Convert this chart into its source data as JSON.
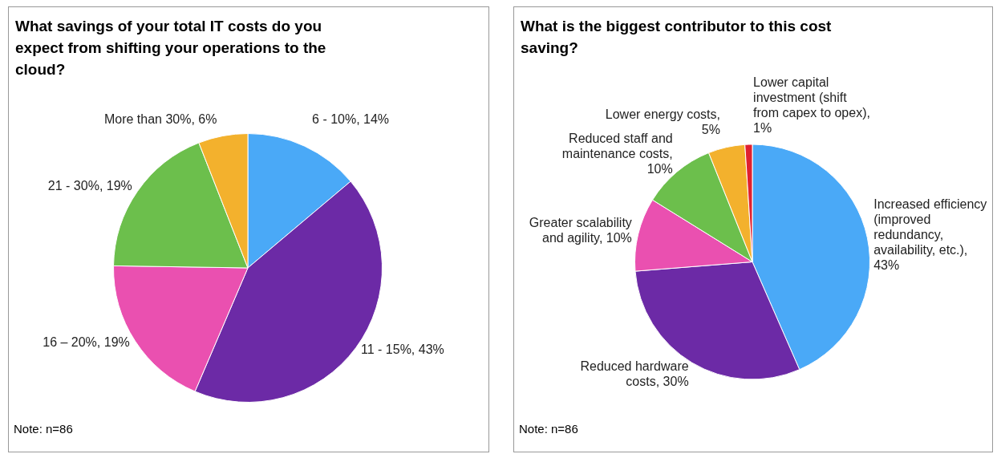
{
  "chart_data": [
    {
      "type": "pie",
      "title": "What savings of your total IT costs do you expect from shifting your operations to the cloud?",
      "categories": [
        "6 - 10%, 14%",
        "11 - 15%, 43%",
        "16 – 20%, 19%",
        "21 - 30%, 19%",
        "More than 30%, 6%"
      ],
      "values": [
        14,
        43,
        19,
        19,
        6
      ],
      "colors": [
        "#4aa9f7",
        "#6c2aa6",
        "#ea50b0",
        "#6cbf4c",
        "#f3b12d"
      ],
      "annotations": [
        "Note: n=86"
      ]
    },
    {
      "type": "pie",
      "title": "What is the biggest contributor to this cost saving?",
      "categories": [
        "Increased efficiency (improved redundancy, availability, etc.), 43%",
        "Reduced hardware costs, 30%",
        "Greater scalability and agility, 10%",
        "Reduced staff and maintenance costs, 10%",
        "Lower energy costs, 5%",
        "Lower capital investment (shift from capex to opex), 1%"
      ],
      "values": [
        43,
        30,
        10,
        10,
        5,
        1
      ],
      "colors": [
        "#4aa9f7",
        "#6c2aa6",
        "#ea50b0",
        "#6cbf4c",
        "#f3b12d",
        "#e0202f"
      ],
      "annotations": [
        "Note: n=86"
      ]
    }
  ]
}
